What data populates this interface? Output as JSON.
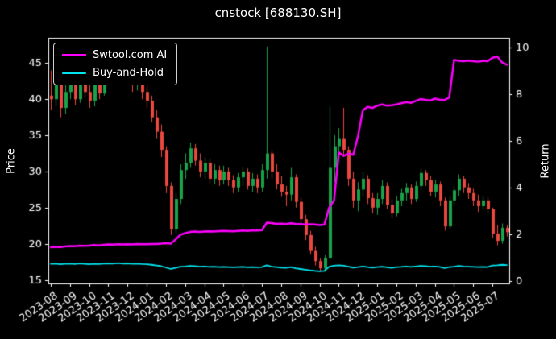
{
  "chart_data": {
    "type": "candlestick+line",
    "title": "cnstock [688130.SH]",
    "ylabel": "Price",
    "ylabel_right": "Return",
    "background": "#000000",
    "foreground": "#ffffff",
    "legend_position": "upper-left",
    "grid": false,
    "x_tick_labels": [
      "2023-08",
      "2023-09",
      "2023-10",
      "2023-11",
      "2023-12",
      "2024-01",
      "2024-02",
      "2024-03",
      "2024-04",
      "2024-05",
      "2024-06",
      "2024-07",
      "2024-08",
      "2024-09",
      "2024-10",
      "2024-11",
      "2024-12",
      "2025-01",
      "2025-02",
      "2025-03",
      "2025-04",
      "2025-05",
      "2025-06",
      "2025-07"
    ],
    "price_ticks": [
      15,
      20,
      25,
      30,
      35,
      40,
      45
    ],
    "return_ticks": [
      0,
      2,
      4,
      6,
      8,
      10
    ],
    "price_range": [
      14.5,
      48.5
    ],
    "return_range": [
      -0.1,
      10.4
    ],
    "up_color": "#19a24a",
    "down_color": "#e8483f",
    "candles_ohlc": [
      [
        40.5,
        44.0,
        38.5,
        40.0
      ],
      [
        40.0,
        43.5,
        39.0,
        42.5
      ],
      [
        42.5,
        43.0,
        37.5,
        38.8
      ],
      [
        38.8,
        42.0,
        38.0,
        41.0
      ],
      [
        41.0,
        43.5,
        40.0,
        42.3
      ],
      [
        42.3,
        43.0,
        39.2,
        40.0
      ],
      [
        40.0,
        43.8,
        39.5,
        43.0
      ],
      [
        43.0,
        43.5,
        40.2,
        41.0
      ],
      [
        41.0,
        42.0,
        38.8,
        39.8
      ],
      [
        39.8,
        42.5,
        39.0,
        42.0
      ],
      [
        42.0,
        43.0,
        40.0,
        40.8
      ],
      [
        40.8,
        43.6,
        40.5,
        43.2
      ],
      [
        43.2,
        45.2,
        42.0,
        44.3
      ],
      [
        44.3,
        45.0,
        42.5,
        43.2
      ],
      [
        43.2,
        45.6,
        42.8,
        45.0
      ],
      [
        45.0,
        45.4,
        42.6,
        43.3
      ],
      [
        43.3,
        44.8,
        42.0,
        44.0
      ],
      [
        44.0,
        44.5,
        41.0,
        42.0
      ],
      [
        42.0,
        43.8,
        41.2,
        43.0
      ],
      [
        43.0,
        43.4,
        40.0,
        41.0
      ],
      [
        41.0,
        41.8,
        38.8,
        39.8
      ],
      [
        39.8,
        40.5,
        36.8,
        37.5
      ],
      [
        37.5,
        38.5,
        34.5,
        35.5
      ],
      [
        35.5,
        36.5,
        32.0,
        33.0
      ],
      [
        33.0,
        33.5,
        27.0,
        28.0
      ],
      [
        28.0,
        28.5,
        21.2,
        22.0
      ],
      [
        22.0,
        27.0,
        21.5,
        26.2
      ],
      [
        26.2,
        31.0,
        25.5,
        30.2
      ],
      [
        30.2,
        32.5,
        29.0,
        31.2
      ],
      [
        31.2,
        34.0,
        30.5,
        33.2
      ],
      [
        33.2,
        33.8,
        30.8,
        31.5
      ],
      [
        31.5,
        32.5,
        29.2,
        30.0
      ],
      [
        30.0,
        32.0,
        29.0,
        31.2
      ],
      [
        31.2,
        31.8,
        28.4,
        29.0
      ],
      [
        29.0,
        31.0,
        28.2,
        30.2
      ],
      [
        30.2,
        30.8,
        28.0,
        28.8
      ],
      [
        28.8,
        30.8,
        28.2,
        30.0
      ],
      [
        30.0,
        30.5,
        28.0,
        28.8
      ],
      [
        28.8,
        29.5,
        27.0,
        27.8
      ],
      [
        27.8,
        29.8,
        27.2,
        29.2
      ],
      [
        29.2,
        30.6,
        28.0,
        30.0
      ],
      [
        30.0,
        30.4,
        27.5,
        28.0
      ],
      [
        28.0,
        29.8,
        27.2,
        29.0
      ],
      [
        29.0,
        29.6,
        27.0,
        27.8
      ],
      [
        27.8,
        31.0,
        27.2,
        30.2
      ],
      [
        30.2,
        47.3,
        29.0,
        32.5
      ],
      [
        32.5,
        33.0,
        29.0,
        30.0
      ],
      [
        30.0,
        31.0,
        27.5,
        28.2
      ],
      [
        28.2,
        29.4,
        26.5,
        27.2
      ],
      [
        27.2,
        28.0,
        25.2,
        26.8
      ],
      [
        26.8,
        30.5,
        26.0,
        29.2
      ],
      [
        29.2,
        29.6,
        25.0,
        25.8
      ],
      [
        25.8,
        26.4,
        22.8,
        23.4
      ],
      [
        23.4,
        24.0,
        20.5,
        21.2
      ],
      [
        21.2,
        21.8,
        18.5,
        19.0
      ],
      [
        19.0,
        19.6,
        17.0,
        17.6
      ],
      [
        17.6,
        18.0,
        16.2,
        16.6
      ],
      [
        16.6,
        18.4,
        16.1,
        18.0
      ],
      [
        18.0,
        39.0,
        17.8,
        30.5
      ],
      [
        30.5,
        35.0,
        28.5,
        33.5
      ],
      [
        33.5,
        36.0,
        31.5,
        34.5
      ],
      [
        34.5,
        38.8,
        32.0,
        33.0
      ],
      [
        33.0,
        33.5,
        28.0,
        29.0
      ],
      [
        29.0,
        30.0,
        25.0,
        26.0
      ],
      [
        26.0,
        28.5,
        24.5,
        27.5
      ],
      [
        27.5,
        30.0,
        26.5,
        29.0
      ],
      [
        29.0,
        29.5,
        25.5,
        26.3
      ],
      [
        26.3,
        27.0,
        24.2,
        25.0
      ],
      [
        25.0,
        27.0,
        24.0,
        26.2
      ],
      [
        26.2,
        28.8,
        25.5,
        28.0
      ],
      [
        28.0,
        28.5,
        24.8,
        25.4
      ],
      [
        25.4,
        26.2,
        23.5,
        24.2
      ],
      [
        24.2,
        26.6,
        23.8,
        26.0
      ],
      [
        26.0,
        27.6,
        25.2,
        27.0
      ],
      [
        27.0,
        28.4,
        26.0,
        27.8
      ],
      [
        27.8,
        28.2,
        25.5,
        26.2
      ],
      [
        26.2,
        28.6,
        25.8,
        28.0
      ],
      [
        28.0,
        30.4,
        27.4,
        29.8
      ],
      [
        29.8,
        30.2,
        28.0,
        28.8
      ],
      [
        28.8,
        29.4,
        26.6,
        27.2
      ],
      [
        27.2,
        28.8,
        26.4,
        28.2
      ],
      [
        28.2,
        28.6,
        25.2,
        26.0
      ],
      [
        26.0,
        26.4,
        21.8,
        22.4
      ],
      [
        22.4,
        26.6,
        22.0,
        26.0
      ],
      [
        26.0,
        28.0,
        25.2,
        27.4
      ],
      [
        27.4,
        29.6,
        26.6,
        29.0
      ],
      [
        29.0,
        29.4,
        27.0,
        27.8
      ],
      [
        27.8,
        28.4,
        26.2,
        27.0
      ],
      [
        27.0,
        27.6,
        25.2,
        26.0
      ],
      [
        26.0,
        26.8,
        24.4,
        25.2
      ],
      [
        25.2,
        26.6,
        24.6,
        26.0
      ],
      [
        26.0,
        26.4,
        24.2,
        24.8
      ],
      [
        24.8,
        25.0,
        20.8,
        21.4
      ],
      [
        21.4,
        22.6,
        19.8,
        20.4
      ],
      [
        20.4,
        22.8,
        20.0,
        22.2
      ],
      [
        22.2,
        22.6,
        21.0,
        21.6
      ]
    ],
    "series": [
      {
        "name": "Swtool.com AI",
        "axis": "return",
        "color": "#ff00ff",
        "width": 2.5,
        "values": [
          1.45,
          1.47,
          1.46,
          1.48,
          1.5,
          1.49,
          1.52,
          1.51,
          1.52,
          1.54,
          1.53,
          1.55,
          1.57,
          1.56,
          1.58,
          1.57,
          1.58,
          1.57,
          1.59,
          1.58,
          1.58,
          1.59,
          1.59,
          1.6,
          1.62,
          1.6,
          1.78,
          1.98,
          2.05,
          2.1,
          2.12,
          2.1,
          2.12,
          2.13,
          2.12,
          2.14,
          2.15,
          2.14,
          2.13,
          2.15,
          2.16,
          2.15,
          2.17,
          2.16,
          2.18,
          2.5,
          2.48,
          2.45,
          2.46,
          2.44,
          2.47,
          2.45,
          2.44,
          2.42,
          2.43,
          2.42,
          2.4,
          2.42,
          3.15,
          3.45,
          5.5,
          5.35,
          5.45,
          5.4,
          6.2,
          7.3,
          7.45,
          7.4,
          7.5,
          7.55,
          7.5,
          7.52,
          7.55,
          7.6,
          7.65,
          7.62,
          7.7,
          7.78,
          7.75,
          7.72,
          7.8,
          7.76,
          7.74,
          7.85,
          9.45,
          9.42,
          9.4,
          9.43,
          9.4,
          9.38,
          9.42,
          9.4,
          9.55,
          9.6,
          9.35,
          9.25
        ]
      },
      {
        "name": "Buy-and-Hold",
        "axis": "return",
        "color": "#00e5ee",
        "width": 1.8,
        "values": [
          0.74,
          0.75,
          0.72,
          0.74,
          0.75,
          0.73,
          0.76,
          0.74,
          0.72,
          0.74,
          0.73,
          0.75,
          0.76,
          0.75,
          0.77,
          0.75,
          0.76,
          0.74,
          0.75,
          0.73,
          0.72,
          0.7,
          0.67,
          0.64,
          0.58,
          0.52,
          0.57,
          0.62,
          0.63,
          0.65,
          0.64,
          0.62,
          0.63,
          0.61,
          0.62,
          0.6,
          0.61,
          0.6,
          0.59,
          0.6,
          0.61,
          0.59,
          0.6,
          0.59,
          0.6,
          0.68,
          0.62,
          0.6,
          0.58,
          0.57,
          0.6,
          0.55,
          0.52,
          0.49,
          0.46,
          0.44,
          0.42,
          0.44,
          0.62,
          0.66,
          0.68,
          0.66,
          0.62,
          0.58,
          0.6,
          0.63,
          0.6,
          0.58,
          0.6,
          0.62,
          0.59,
          0.57,
          0.6,
          0.61,
          0.63,
          0.61,
          0.63,
          0.65,
          0.64,
          0.62,
          0.63,
          0.61,
          0.56,
          0.6,
          0.62,
          0.65,
          0.63,
          0.62,
          0.61,
          0.6,
          0.61,
          0.6,
          0.67,
          0.68,
          0.7,
          0.69
        ]
      }
    ]
  }
}
